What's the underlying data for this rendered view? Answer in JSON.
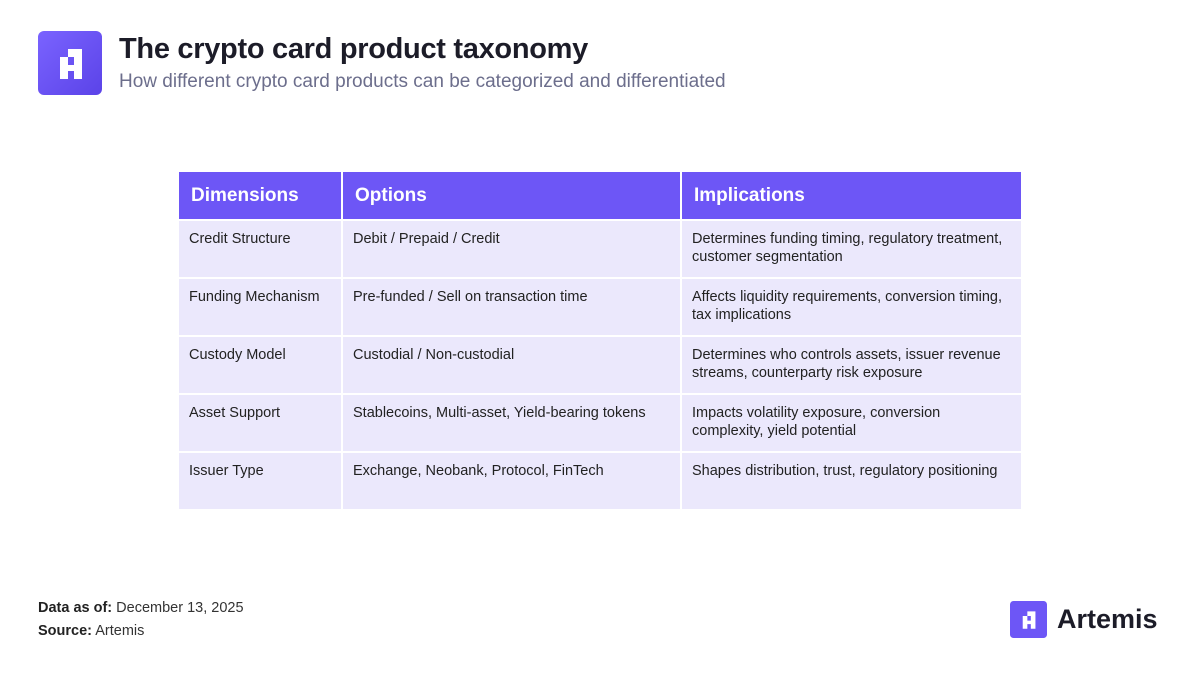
{
  "header": {
    "title": "The crypto card product taxonomy",
    "subtitle": "How different crypto card products can be categorized and differentiated"
  },
  "table": {
    "columns": [
      "Dimensions",
      "Options",
      "Implications"
    ],
    "rows": [
      [
        "Credit Structure",
        "Debit / Prepaid / Credit",
        "Determines funding timing, regulatory treatment, customer segmentation"
      ],
      [
        "Funding Mechanism",
        "Pre-funded / Sell on transaction time",
        "Affects liquidity requirements, conversion timing, tax implications"
      ],
      [
        "Custody Model",
        "Custodial / Non-custodial",
        "Determines who controls assets, issuer revenue streams, counterparty risk exposure"
      ],
      [
        "Asset Support",
        "Stablecoins, Multi-asset, Yield-bearing tokens",
        "Impacts volatility exposure, conversion complexity, yield potential"
      ],
      [
        "Issuer Type",
        "Exchange, Neobank, Protocol, FinTech",
        "Shapes distribution, trust, regulatory positioning"
      ]
    ]
  },
  "footer": {
    "data_as_of_label": "Data as of:",
    "data_as_of": "December 13, 2025",
    "source_label": "Source:",
    "source": "Artemis"
  },
  "brand": {
    "name": "Artemis"
  }
}
